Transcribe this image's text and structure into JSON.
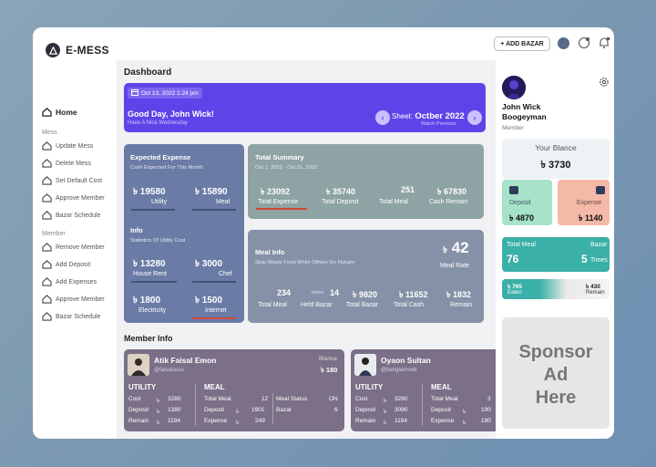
{
  "app": {
    "logo": "E-MESS"
  },
  "sidebar": {
    "home": "Home",
    "mess_section": "Mess",
    "mess_items": [
      "Update Mess",
      "Delete Mess",
      "Set Default Cost",
      "Approve Member",
      "Bazar Schedule"
    ],
    "member_section": "Member",
    "member_items": [
      "Remove Member",
      "Add Deposit",
      "Add Expenses",
      "Approve Member",
      "Bazar Schedule"
    ]
  },
  "topbar": {
    "add_bazar": "+ ADD BAZAR"
  },
  "dashboard": {
    "title": "Dashboard",
    "banner": {
      "date": "Oct 13, 2022 1:24 pm",
      "greeting": "Good Day, John Wick!",
      "sub": "Have A Nice Wednesday",
      "sheet_label": "Sheet:",
      "sheet_value": "Octber 2022",
      "watch": "Watch Previous"
    },
    "expected": {
      "title": "Expected Expense",
      "sub": "Cosh Expected For This Month",
      "utility_val": "19580",
      "utility_lbl": "Utility",
      "meal_val": "15890",
      "meal_lbl": "Meal",
      "info_title": "Info",
      "info_sub": "Statistics Of Utility Cost",
      "rent_val": "13280",
      "rent_lbl": "House Rent",
      "chef_val": "3000",
      "chef_lbl": "Chef",
      "elec_val": "1800",
      "elec_lbl": "Electricity",
      "net_val": "1500",
      "net_lbl": "Internet"
    },
    "summary": {
      "title": "Total Summary",
      "sub": "Oct 1, 2022 - Oct 31, 2022",
      "exp_val": "23092",
      "exp_lbl": "Total Expense",
      "dep_val": "35740",
      "dep_lbl": "Total Deposit",
      "meal_val": "251",
      "meal_lbl": "Total Meal",
      "cash_val": "67830",
      "cash_lbl": "Cash Remain"
    },
    "meal_info": {
      "title": "Meal Info",
      "sub": "Stop Waste Food While Others Go Hungry",
      "rate_val": "42",
      "rate_lbl": "Meal Rate",
      "tmeal_val": "234",
      "tmeal_lbl": "Total Meal",
      "times": "times",
      "held_val": "14",
      "held_lbl": "Held Bazar",
      "tbazar_val": "9820",
      "tbazar_lbl": "Total Bazar",
      "tcash_val": "11652",
      "tcash_lbl": "Total Cash",
      "remain_val": "1832",
      "remain_lbl": "Remain"
    },
    "member_info_title": "Member Info",
    "members": [
      {
        "name": "Atik Faisal Emon",
        "handle": "@faisalsuso",
        "blance_lbl": "Blance",
        "blance_val": "180",
        "utility": "UTILITY",
        "meal": "MEAL",
        "cost_lbl": "Cost",
        "cost": "3280",
        "deposit_lbl": "Deposit",
        "deposit": "1380",
        "remain_lbl": "Remain",
        "remain": "1194",
        "tmeal_lbl": "Total Meal",
        "tmeal": "12",
        "mdep_lbl": "Deposit",
        "mdep": "1901",
        "mexp_lbl": "Expense",
        "mexp": "249",
        "status_lbl": "Meal Status",
        "status": "ON",
        "bazar_lbl": "Bazar",
        "bazar": "6"
      },
      {
        "name": "Oyaon Sultan",
        "handle": "@banglarnoob",
        "utility": "UTILITY",
        "meal": "MEAL",
        "cost_lbl": "Cost",
        "cost": "3280",
        "deposit_lbl": "Deposit",
        "deposit": "3090",
        "remain_lbl": "Remain",
        "remain": "1194",
        "tmeal_lbl": "Total Meal",
        "tmeal": "3",
        "mdep_lbl": "Deposit",
        "mdep": "190",
        "mexp_lbl": "Expense",
        "mexp": "190"
      }
    ]
  },
  "profile": {
    "name1": "John Wick",
    "name2": "Boogeyman",
    "role": "Member",
    "balance_lbl": "Your Blance",
    "balance_val": "3730",
    "deposit_lbl": "Deposit",
    "deposit_val": "4870",
    "expense_lbl": "Expense",
    "expense_val": "1140",
    "tmeal_lbl": "Total Meal",
    "tmeal_val": "76",
    "bazar_lbl": "Bazar",
    "bazar_val": "5",
    "bazar_unit": "Times",
    "eaten_val": "765",
    "eaten_lbl": "Eaten",
    "remain_val": "430",
    "remain_lbl": "Remain",
    "sponsor1": "Sponsor",
    "sponsor2": "Ad",
    "sponsor3": "Here"
  },
  "colors": {
    "accent": "#5e44e8",
    "teal": "#3ab0a8",
    "mint": "#a6e3c8",
    "salmon": "#f5b9a8"
  },
  "icons": [
    "logo-icon",
    "home-icon",
    "plus-icon",
    "avatar",
    "chat-icon",
    "bell-icon",
    "calendar-icon",
    "chevron-left-icon",
    "chevron-right-icon",
    "taka-icon",
    "gear-icon",
    "wallet-icon"
  ]
}
